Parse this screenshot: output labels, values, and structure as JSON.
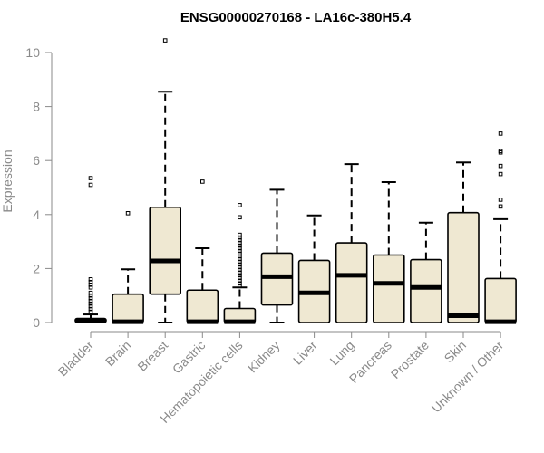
{
  "chart_data": {
    "type": "box",
    "title": "ENSG00000270168 - LA16c-380H5.4",
    "xlabel": "",
    "ylabel": "Expression",
    "ylim": [
      0,
      10
    ],
    "yticks": [
      0,
      2,
      4,
      6,
      8,
      10
    ],
    "box_color": "#efe8d2",
    "categories": [
      "Bladder",
      "Brain",
      "Breast",
      "Gastric",
      "Hematopoietic cells",
      "Kidney",
      "Liver",
      "Lung",
      "Pancreas",
      "Prostate",
      "Skin",
      "Unknown / Other"
    ],
    "boxes": [
      {
        "category": "Bladder",
        "lower_whisker": 0,
        "q1": 0,
        "median": 0.05,
        "q3": 0.15,
        "upper_whisker": 0.3,
        "outliers": [
          0.4,
          0.5,
          0.6,
          0.7,
          0.8,
          0.9,
          1.0,
          1.1,
          1.3,
          1.4,
          1.5,
          1.6,
          5.1,
          5.35
        ]
      },
      {
        "category": "Brain",
        "lower_whisker": 0,
        "q1": 0,
        "median": 0.03,
        "q3": 1.05,
        "upper_whisker": 1.97,
        "outliers": [
          4.05
        ]
      },
      {
        "category": "Breast",
        "lower_whisker": 0,
        "q1": 1.05,
        "median": 2.28,
        "q3": 4.27,
        "upper_whisker": 8.55,
        "outliers": [
          10.45
        ]
      },
      {
        "category": "Gastric",
        "lower_whisker": 0,
        "q1": 0,
        "median": 0.03,
        "q3": 1.2,
        "upper_whisker": 2.75,
        "outliers": [
          5.22
        ]
      },
      {
        "category": "Hematopoietic cells",
        "lower_whisker": 0,
        "q1": 0,
        "median": 0.03,
        "q3": 0.52,
        "upper_whisker": 1.3,
        "outliers": [
          1.35,
          1.45,
          1.55,
          1.65,
          1.75,
          1.85,
          1.95,
          2.05,
          2.15,
          2.25,
          2.35,
          2.45,
          2.55,
          2.65,
          2.75,
          2.85,
          2.95,
          3.05,
          3.15,
          3.25,
          3.9,
          4.35
        ]
      },
      {
        "category": "Kidney",
        "lower_whisker": 0,
        "q1": 0.65,
        "median": 1.7,
        "q3": 2.57,
        "upper_whisker": 4.92,
        "outliers": []
      },
      {
        "category": "Liver",
        "lower_whisker": 0,
        "q1": 0,
        "median": 1.1,
        "q3": 2.3,
        "upper_whisker": 3.97,
        "outliers": []
      },
      {
        "category": "Lung",
        "lower_whisker": 0,
        "q1": 0,
        "median": 1.75,
        "q3": 2.95,
        "upper_whisker": 5.87,
        "outliers": []
      },
      {
        "category": "Pancreas",
        "lower_whisker": 0,
        "q1": 0,
        "median": 1.45,
        "q3": 2.5,
        "upper_whisker": 5.2,
        "outliers": []
      },
      {
        "category": "Prostate",
        "lower_whisker": 0,
        "q1": 0,
        "median": 1.3,
        "q3": 2.33,
        "upper_whisker": 3.7,
        "outliers": []
      },
      {
        "category": "Skin",
        "lower_whisker": 0,
        "q1": 0,
        "median": 0.25,
        "q3": 4.07,
        "upper_whisker": 5.93,
        "outliers": []
      },
      {
        "category": "Unknown / Other",
        "lower_whisker": 0,
        "q1": 0,
        "median": 0.03,
        "q3": 1.63,
        "upper_whisker": 3.83,
        "outliers": [
          4.3,
          4.55,
          5.5,
          5.8,
          6.3,
          6.35,
          7.0
        ]
      }
    ]
  }
}
